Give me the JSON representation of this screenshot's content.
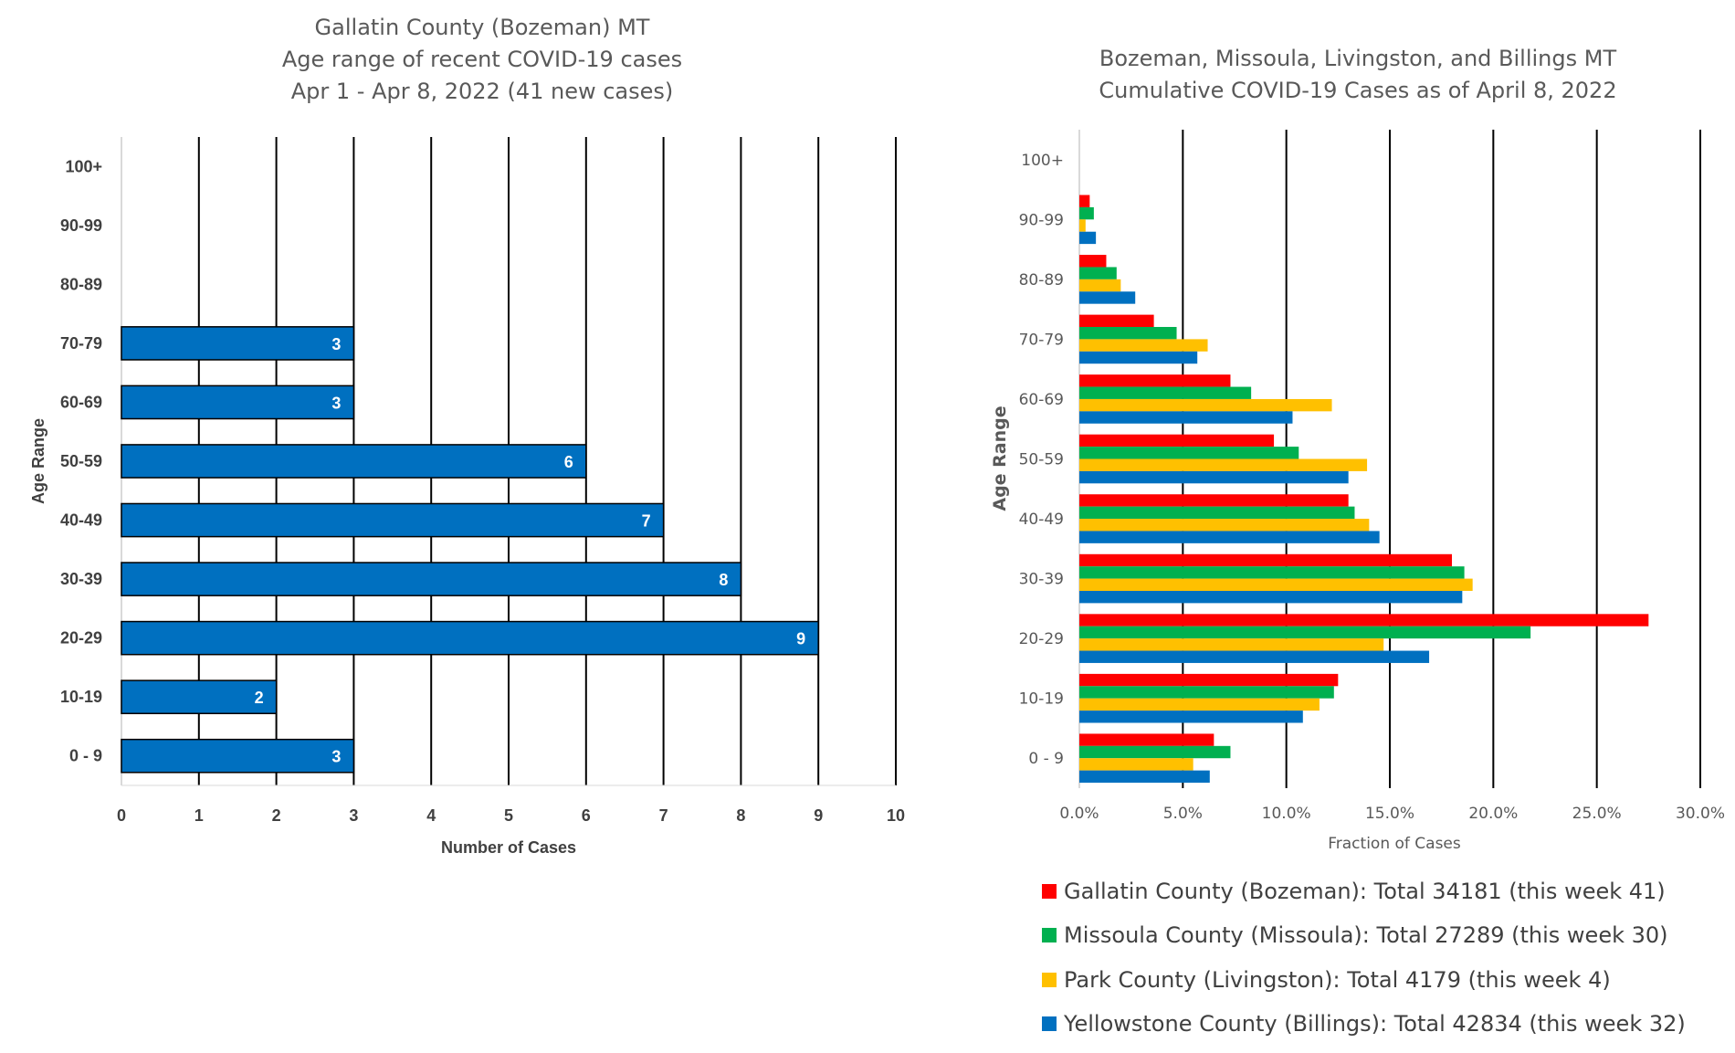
{
  "chart_data": [
    {
      "type": "bar",
      "orientation": "horizontal",
      "title": [
        "Gallatin County (Bozeman) MT",
        "Age range of recent COVID-19 cases",
        "Apr 1 - Apr 8, 2022 (41 new cases)"
      ],
      "xlabel": "Number of Cases",
      "ylabel": "Age Range",
      "categories": [
        "100+",
        "90-99",
        "80-89",
        "70-79",
        "60-69",
        "50-59",
        "40-49",
        "30-39",
        "20-29",
        "10-19",
        "0 - 9"
      ],
      "values": [
        0,
        0,
        0,
        3,
        3,
        6,
        7,
        8,
        9,
        2,
        3
      ],
      "xlim": [
        0,
        10
      ],
      "xticks": [
        "0",
        "1",
        "2",
        "3",
        "4",
        "5",
        "6",
        "7",
        "8",
        "9",
        "10"
      ],
      "grid": "vertical",
      "bar_color": "#0070C0",
      "show_data_labels": true
    },
    {
      "type": "bar",
      "orientation": "horizontal",
      "title": [
        "Bozeman, Missoula, Livingston, and Billings MT",
        "Cumulative COVID-19 Cases as of April 8, 2022"
      ],
      "xlabel": "Fraction of Cases",
      "ylabel": "Age Range",
      "categories": [
        "100+",
        "90-99",
        "80-89",
        "70-79",
        "60-69",
        "50-59",
        "40-49",
        "30-39",
        "20-29",
        "10-19",
        "0 - 9"
      ],
      "xlim": [
        0,
        30
      ],
      "xticks": [
        "0.0%",
        "5.0%",
        "10.0%",
        "15.0%",
        "20.0%",
        "25.0%",
        "30.0%"
      ],
      "grid": "vertical",
      "legend_position": "bottom",
      "series": [
        {
          "name": "Gallatin County (Bozeman): Total 34181 (this week 41)",
          "color": "#FF0000",
          "values": [
            0.0,
            0.5,
            1.3,
            3.6,
            7.3,
            9.4,
            13.0,
            18.0,
            27.5,
            12.5,
            6.5
          ]
        },
        {
          "name": "Missoula County (Missoula): Total 27289 (this week 30)",
          "color": "#00B050",
          "values": [
            0.0,
            0.7,
            1.8,
            4.7,
            8.3,
            10.6,
            13.3,
            18.6,
            21.8,
            12.3,
            7.3
          ]
        },
        {
          "name": "Park County (Livingston): Total 4179 (this week 4)",
          "color": "#FFC000",
          "values": [
            0.0,
            0.3,
            2.0,
            6.2,
            12.2,
            13.9,
            14.0,
            19.0,
            14.7,
            11.6,
            5.5
          ]
        },
        {
          "name": "Yellowstone County (Billings): Total 42834 (this week 32)",
          "color": "#0070C0",
          "values": [
            0.0,
            0.8,
            2.7,
            5.7,
            10.3,
            13.0,
            14.5,
            18.5,
            16.9,
            10.8,
            6.3
          ]
        }
      ]
    }
  ]
}
